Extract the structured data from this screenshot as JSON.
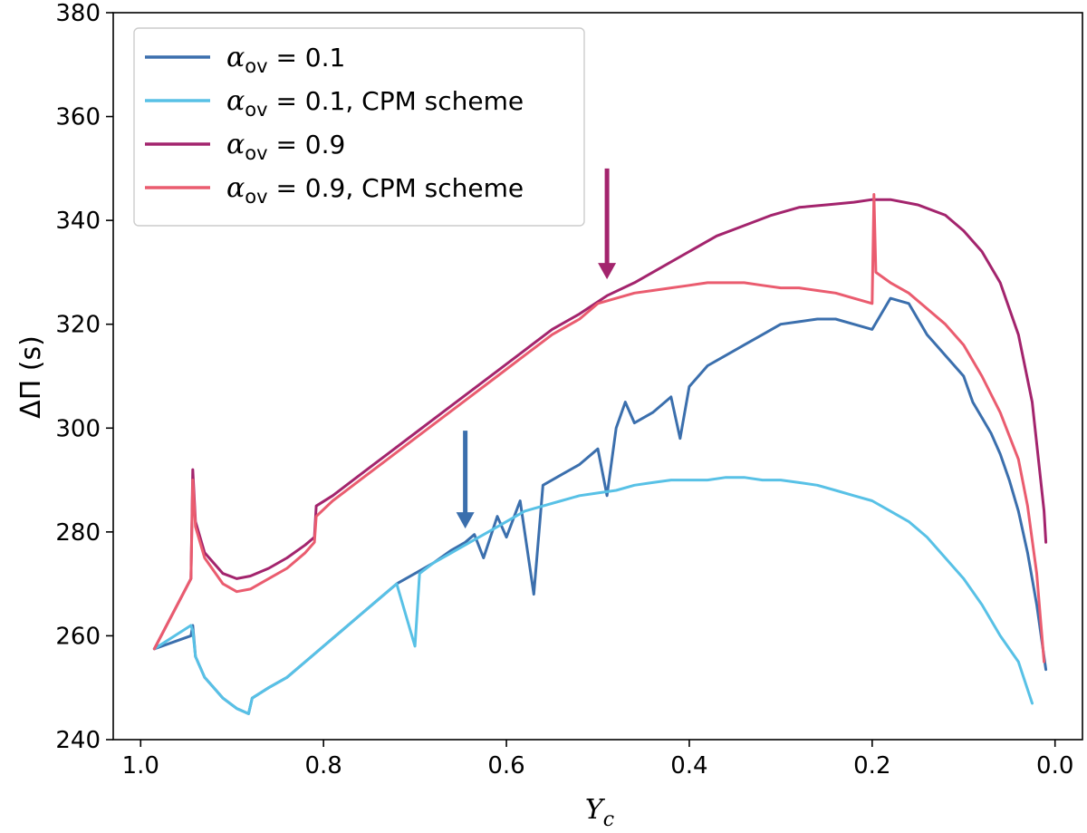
{
  "chart_data": {
    "type": "line",
    "xlabel": {
      "main": "Y",
      "sub": "c"
    },
    "ylabel": "ΔΠ (s)",
    "xlim": [
      1.03,
      -0.03
    ],
    "ylim": [
      240,
      380
    ],
    "x_ticks": [
      1.0,
      0.8,
      0.6,
      0.4,
      0.2,
      0.0
    ],
    "x_tick_labels": [
      "1.0",
      "0.8",
      "0.6",
      "0.4",
      "0.2",
      "0.0"
    ],
    "y_ticks": [
      240,
      260,
      280,
      300,
      320,
      340,
      360,
      380
    ],
    "y_tick_labels": [
      "240",
      "260",
      "280",
      "300",
      "320",
      "340",
      "360",
      "380"
    ],
    "grid": false,
    "legend_position": "top-left",
    "series": [
      {
        "name": "α_ov = 0.1",
        "legend_parts": {
          "symbol": "α",
          "sub": "ov",
          "rest": " = 0.1"
        },
        "color": "#3b6fad",
        "points": [
          [
            0.985,
            257.5
          ],
          [
            0.945,
            260
          ],
          [
            0.943,
            262
          ],
          [
            0.94,
            256
          ],
          [
            0.93,
            252
          ],
          [
            0.91,
            248
          ],
          [
            0.895,
            246
          ],
          [
            0.882,
            245
          ],
          [
            0.878,
            248
          ],
          [
            0.86,
            250
          ],
          [
            0.84,
            252
          ],
          [
            0.82,
            255
          ],
          [
            0.8,
            258
          ],
          [
            0.78,
            261
          ],
          [
            0.76,
            264
          ],
          [
            0.74,
            267
          ],
          [
            0.72,
            270
          ],
          [
            0.7,
            272
          ],
          [
            0.68,
            274
          ],
          [
            0.66,
            276.5
          ],
          [
            0.645,
            278
          ],
          [
            0.635,
            279.5
          ],
          [
            0.625,
            275
          ],
          [
            0.61,
            283
          ],
          [
            0.6,
            279
          ],
          [
            0.585,
            286
          ],
          [
            0.57,
            268
          ],
          [
            0.56,
            289
          ],
          [
            0.54,
            291
          ],
          [
            0.52,
            293
          ],
          [
            0.5,
            296
          ],
          [
            0.49,
            287
          ],
          [
            0.48,
            300
          ],
          [
            0.47,
            305
          ],
          [
            0.46,
            301
          ],
          [
            0.44,
            303
          ],
          [
            0.42,
            306
          ],
          [
            0.41,
            298
          ],
          [
            0.4,
            308
          ],
          [
            0.38,
            312
          ],
          [
            0.36,
            314
          ],
          [
            0.34,
            316
          ],
          [
            0.32,
            318
          ],
          [
            0.3,
            320
          ],
          [
            0.28,
            320.5
          ],
          [
            0.26,
            321
          ],
          [
            0.24,
            321
          ],
          [
            0.22,
            320
          ],
          [
            0.2,
            319
          ],
          [
            0.18,
            325
          ],
          [
            0.16,
            324
          ],
          [
            0.15,
            321
          ],
          [
            0.14,
            318
          ],
          [
            0.13,
            316
          ],
          [
            0.12,
            314
          ],
          [
            0.1,
            310
          ],
          [
            0.09,
            305
          ],
          [
            0.08,
            302
          ],
          [
            0.07,
            299
          ],
          [
            0.06,
            295
          ],
          [
            0.05,
            290
          ],
          [
            0.04,
            284
          ],
          [
            0.03,
            276
          ],
          [
            0.02,
            266
          ],
          [
            0.01,
            253.5
          ]
        ]
      },
      {
        "name": "α_ov = 0.1, CPM scheme",
        "legend_parts": {
          "symbol": "α",
          "sub": "ov",
          "rest": " = 0.1, CPM scheme"
        },
        "color": "#58c1e6",
        "points": [
          [
            0.985,
            257.5
          ],
          [
            0.945,
            262
          ],
          [
            0.943,
            261
          ],
          [
            0.94,
            256
          ],
          [
            0.93,
            252
          ],
          [
            0.91,
            248
          ],
          [
            0.895,
            246
          ],
          [
            0.882,
            245
          ],
          [
            0.878,
            248
          ],
          [
            0.86,
            250
          ],
          [
            0.84,
            252
          ],
          [
            0.82,
            255
          ],
          [
            0.8,
            258
          ],
          [
            0.78,
            261
          ],
          [
            0.76,
            264
          ],
          [
            0.74,
            267
          ],
          [
            0.72,
            270
          ],
          [
            0.7,
            258
          ],
          [
            0.695,
            272
          ],
          [
            0.68,
            274
          ],
          [
            0.66,
            276
          ],
          [
            0.64,
            278
          ],
          [
            0.62,
            280
          ],
          [
            0.6,
            282
          ],
          [
            0.58,
            284
          ],
          [
            0.56,
            285
          ],
          [
            0.54,
            286
          ],
          [
            0.52,
            287
          ],
          [
            0.5,
            287.5
          ],
          [
            0.48,
            288
          ],
          [
            0.46,
            289
          ],
          [
            0.44,
            289.5
          ],
          [
            0.42,
            290
          ],
          [
            0.4,
            290
          ],
          [
            0.38,
            290
          ],
          [
            0.36,
            290.5
          ],
          [
            0.34,
            290.5
          ],
          [
            0.32,
            290
          ],
          [
            0.3,
            290
          ],
          [
            0.28,
            289.5
          ],
          [
            0.26,
            289
          ],
          [
            0.24,
            288
          ],
          [
            0.22,
            287
          ],
          [
            0.2,
            286
          ],
          [
            0.18,
            284
          ],
          [
            0.16,
            282
          ],
          [
            0.14,
            279
          ],
          [
            0.12,
            275
          ],
          [
            0.1,
            271
          ],
          [
            0.08,
            266
          ],
          [
            0.06,
            260
          ],
          [
            0.04,
            255
          ],
          [
            0.025,
            247
          ]
        ]
      },
      {
        "name": "α_ov = 0.9",
        "legend_parts": {
          "symbol": "α",
          "sub": "ov",
          "rest": " = 0.9"
        },
        "color": "#a3246d",
        "points": [
          [
            0.985,
            257.5
          ],
          [
            0.945,
            271
          ],
          [
            0.943,
            292
          ],
          [
            0.94,
            282
          ],
          [
            0.93,
            276
          ],
          [
            0.91,
            272
          ],
          [
            0.895,
            271
          ],
          [
            0.88,
            271.5
          ],
          [
            0.86,
            273
          ],
          [
            0.84,
            275
          ],
          [
            0.82,
            277.5
          ],
          [
            0.81,
            279
          ],
          [
            0.808,
            285
          ],
          [
            0.79,
            287
          ],
          [
            0.76,
            291
          ],
          [
            0.73,
            295
          ],
          [
            0.7,
            299
          ],
          [
            0.67,
            303
          ],
          [
            0.64,
            307
          ],
          [
            0.61,
            311
          ],
          [
            0.58,
            315
          ],
          [
            0.55,
            319
          ],
          [
            0.52,
            322
          ],
          [
            0.49,
            325.5
          ],
          [
            0.46,
            328
          ],
          [
            0.43,
            331
          ],
          [
            0.4,
            334
          ],
          [
            0.37,
            337
          ],
          [
            0.34,
            339
          ],
          [
            0.31,
            341
          ],
          [
            0.28,
            342.5
          ],
          [
            0.25,
            343
          ],
          [
            0.22,
            343.5
          ],
          [
            0.2,
            344
          ],
          [
            0.18,
            344
          ],
          [
            0.15,
            343
          ],
          [
            0.12,
            341
          ],
          [
            0.1,
            338
          ],
          [
            0.08,
            334
          ],
          [
            0.06,
            328
          ],
          [
            0.04,
            318
          ],
          [
            0.025,
            305
          ],
          [
            0.012,
            284
          ],
          [
            0.01,
            278
          ]
        ]
      },
      {
        "name": "α_ov = 0.9, CPM scheme",
        "legend_parts": {
          "symbol": "α",
          "sub": "ov",
          "rest": " = 0.9, CPM scheme"
        },
        "color": "#ea5c6f",
        "points": [
          [
            0.985,
            257.5
          ],
          [
            0.945,
            271
          ],
          [
            0.943,
            290
          ],
          [
            0.94,
            281
          ],
          [
            0.93,
            275
          ],
          [
            0.91,
            270
          ],
          [
            0.895,
            268.5
          ],
          [
            0.88,
            269
          ],
          [
            0.86,
            271
          ],
          [
            0.84,
            273
          ],
          [
            0.82,
            276
          ],
          [
            0.81,
            278
          ],
          [
            0.808,
            283
          ],
          [
            0.79,
            286
          ],
          [
            0.76,
            290
          ],
          [
            0.73,
            294
          ],
          [
            0.7,
            298
          ],
          [
            0.67,
            302
          ],
          [
            0.64,
            306
          ],
          [
            0.61,
            310
          ],
          [
            0.58,
            314
          ],
          [
            0.55,
            318
          ],
          [
            0.52,
            321
          ],
          [
            0.5,
            324
          ],
          [
            0.48,
            325
          ],
          [
            0.46,
            326
          ],
          [
            0.44,
            326.5
          ],
          [
            0.42,
            327
          ],
          [
            0.4,
            327.5
          ],
          [
            0.38,
            328
          ],
          [
            0.36,
            328
          ],
          [
            0.34,
            328
          ],
          [
            0.32,
            327.5
          ],
          [
            0.3,
            327
          ],
          [
            0.28,
            327
          ],
          [
            0.26,
            326.5
          ],
          [
            0.24,
            326
          ],
          [
            0.22,
            325
          ],
          [
            0.2,
            324
          ],
          [
            0.198,
            345
          ],
          [
            0.196,
            330
          ],
          [
            0.18,
            328
          ],
          [
            0.16,
            326
          ],
          [
            0.14,
            323
          ],
          [
            0.12,
            320
          ],
          [
            0.1,
            316
          ],
          [
            0.08,
            310
          ],
          [
            0.06,
            303
          ],
          [
            0.04,
            294
          ],
          [
            0.03,
            285
          ],
          [
            0.02,
            272
          ],
          [
            0.012,
            255
          ]
        ]
      }
    ],
    "arrows": [
      {
        "x": 0.49,
        "y_start": 350,
        "y_end": 329,
        "color": "#a3246d"
      },
      {
        "x": 0.645,
        "y_start": 299.5,
        "y_end": 281,
        "color": "#3b6fad"
      }
    ]
  }
}
